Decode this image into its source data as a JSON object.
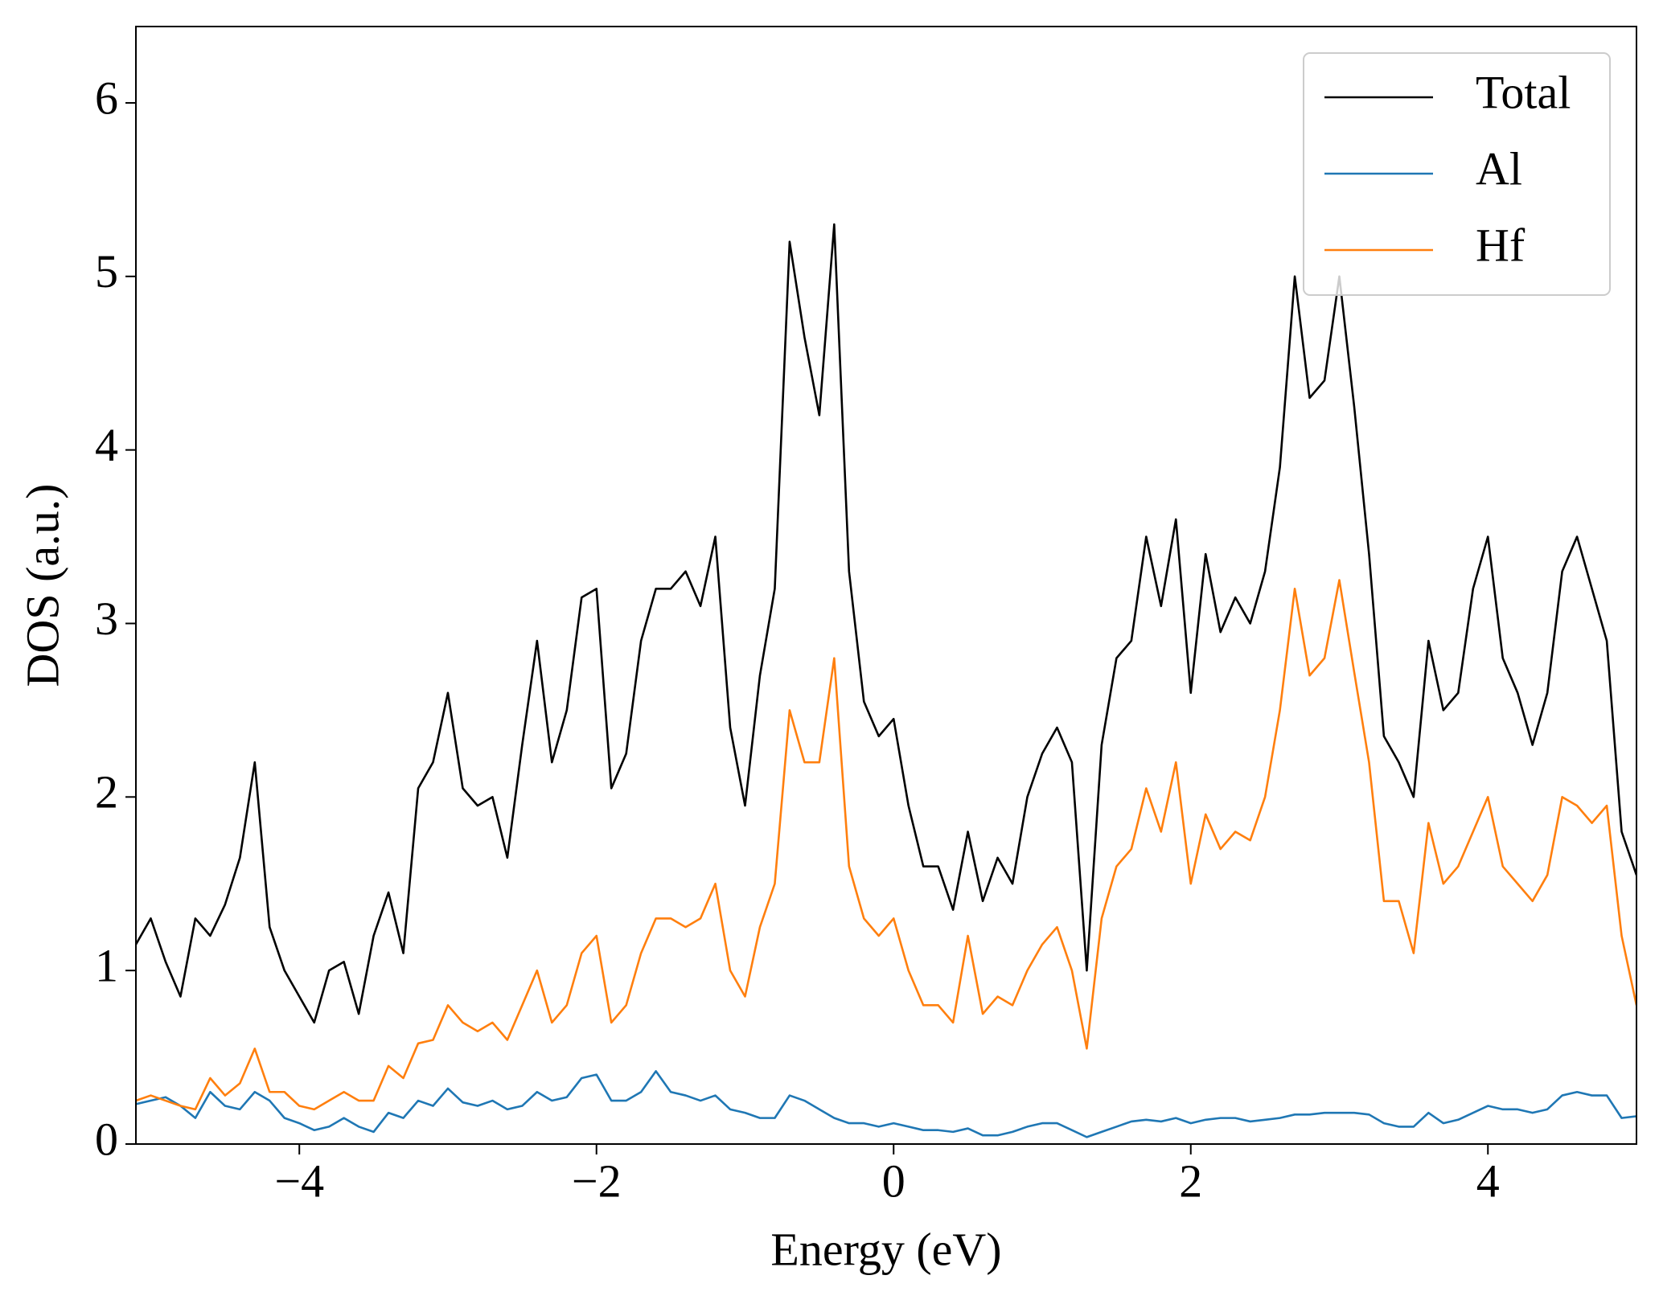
{
  "chart_data": {
    "type": "line",
    "xlabel": "Energy (eV)",
    "ylabel": "DOS (a.u.)",
    "x": [
      -5.1,
      -5.0,
      -4.9,
      -4.8,
      -4.7,
      -4.6,
      -4.5,
      -4.4,
      -4.3,
      -4.2,
      -4.1,
      -4.0,
      -3.9,
      -3.8,
      -3.7,
      -3.6,
      -3.5,
      -3.4,
      -3.3,
      -3.2,
      -3.1,
      -3.0,
      -2.9,
      -2.8,
      -2.7,
      -2.6,
      -2.5,
      -2.4,
      -2.3,
      -2.2,
      -2.1,
      -2.0,
      -1.9,
      -1.8,
      -1.7,
      -1.6,
      -1.5,
      -1.4,
      -1.3,
      -1.2,
      -1.1,
      -1.0,
      -0.9,
      -0.8,
      -0.7,
      -0.6,
      -0.5,
      -0.4,
      -0.3,
      -0.2,
      -0.1,
      0.0,
      0.1,
      0.2,
      0.3,
      0.4,
      0.5,
      0.6,
      0.7,
      0.8,
      0.9,
      1.0,
      1.1,
      1.2,
      1.3,
      1.4,
      1.5,
      1.6,
      1.7,
      1.8,
      1.9,
      2.0,
      2.1,
      2.2,
      2.3,
      2.4,
      2.5,
      2.6,
      2.7,
      2.8,
      2.9,
      3.0,
      3.1,
      3.2,
      3.3,
      3.4,
      3.5,
      3.6,
      3.7,
      3.8,
      3.9,
      4.0,
      4.1,
      4.2,
      4.3,
      4.4,
      4.5,
      4.6,
      4.7,
      4.8,
      4.9,
      5.0
    ],
    "series": [
      {
        "name": "Total",
        "color": "#000000",
        "values": [
          1.15,
          1.3,
          1.05,
          0.85,
          1.3,
          1.2,
          1.38,
          1.65,
          2.2,
          1.25,
          1.0,
          0.85,
          0.7,
          1.0,
          1.05,
          0.75,
          1.2,
          1.45,
          1.1,
          2.05,
          2.2,
          2.6,
          2.05,
          1.95,
          2.0,
          1.65,
          2.3,
          2.9,
          2.2,
          2.5,
          3.15,
          3.2,
          2.05,
          2.25,
          2.9,
          3.2,
          3.2,
          3.3,
          3.1,
          3.5,
          2.4,
          1.95,
          2.7,
          3.2,
          5.2,
          4.65,
          4.2,
          5.3,
          3.3,
          2.55,
          2.35,
          2.45,
          1.95,
          1.6,
          1.6,
          1.35,
          1.8,
          1.4,
          1.65,
          1.5,
          2.0,
          2.25,
          2.4,
          2.2,
          1.0,
          2.3,
          2.8,
          2.9,
          3.5,
          3.1,
          3.6,
          2.6,
          3.4,
          2.95,
          3.15,
          3.0,
          3.3,
          3.9,
          5.0,
          4.3,
          4.4,
          5.0,
          4.25,
          3.4,
          2.35,
          2.2,
          2.0,
          2.9,
          2.5,
          2.6,
          3.2,
          3.5,
          2.8,
          2.6,
          2.3,
          2.6,
          3.3,
          3.5,
          3.2,
          2.9,
          1.8,
          1.55
        ]
      },
      {
        "name": "Al",
        "color": "#1f77b4",
        "values": [
          0.23,
          0.25,
          0.27,
          0.22,
          0.15,
          0.3,
          0.22,
          0.2,
          0.3,
          0.25,
          0.15,
          0.12,
          0.08,
          0.1,
          0.15,
          0.1,
          0.07,
          0.18,
          0.15,
          0.25,
          0.22,
          0.32,
          0.24,
          0.22,
          0.25,
          0.2,
          0.22,
          0.3,
          0.25,
          0.27,
          0.38,
          0.4,
          0.25,
          0.25,
          0.3,
          0.42,
          0.3,
          0.28,
          0.25,
          0.28,
          0.2,
          0.18,
          0.15,
          0.15,
          0.28,
          0.25,
          0.2,
          0.15,
          0.12,
          0.12,
          0.1,
          0.12,
          0.1,
          0.08,
          0.08,
          0.07,
          0.09,
          0.05,
          0.05,
          0.07,
          0.1,
          0.12,
          0.12,
          0.08,
          0.04,
          0.07,
          0.1,
          0.13,
          0.14,
          0.13,
          0.15,
          0.12,
          0.14,
          0.15,
          0.15,
          0.13,
          0.14,
          0.15,
          0.17,
          0.17,
          0.18,
          0.18,
          0.18,
          0.17,
          0.12,
          0.1,
          0.1,
          0.18,
          0.12,
          0.14,
          0.18,
          0.22,
          0.2,
          0.2,
          0.18,
          0.2,
          0.28,
          0.3,
          0.28,
          0.28,
          0.15,
          0.16
        ]
      },
      {
        "name": "Hf",
        "color": "#ff7f0e",
        "values": [
          0.25,
          0.28,
          0.25,
          0.22,
          0.2,
          0.38,
          0.28,
          0.35,
          0.55,
          0.3,
          0.3,
          0.22,
          0.2,
          0.25,
          0.3,
          0.25,
          0.25,
          0.45,
          0.38,
          0.58,
          0.6,
          0.8,
          0.7,
          0.65,
          0.7,
          0.6,
          0.8,
          1.0,
          0.7,
          0.8,
          1.1,
          1.2,
          0.7,
          0.8,
          1.1,
          1.3,
          1.3,
          1.25,
          1.3,
          1.5,
          1.0,
          0.85,
          1.25,
          1.5,
          2.5,
          2.2,
          2.2,
          2.8,
          1.6,
          1.3,
          1.2,
          1.3,
          1.0,
          0.8,
          0.8,
          0.7,
          1.2,
          0.75,
          0.85,
          0.8,
          1.0,
          1.15,
          1.25,
          1.0,
          0.55,
          1.3,
          1.6,
          1.7,
          2.05,
          1.8,
          2.2,
          1.5,
          1.9,
          1.7,
          1.8,
          1.75,
          2.0,
          2.5,
          3.2,
          2.7,
          2.8,
          3.25,
          2.72,
          2.2,
          1.4,
          1.4,
          1.1,
          1.85,
          1.5,
          1.6,
          1.8,
          2.0,
          1.6,
          1.5,
          1.4,
          1.55,
          2.0,
          1.95,
          1.85,
          1.95,
          1.2,
          0.8
        ]
      }
    ],
    "xlim": [
      -5.1,
      5.0
    ],
    "ylim": [
      0,
      6.44
    ],
    "xticks": [
      {
        "value": -4,
        "label": "−4"
      },
      {
        "value": -2,
        "label": "−2"
      },
      0,
      2,
      4
    ],
    "yticks": [
      0,
      1,
      2,
      3,
      4,
      5,
      6
    ],
    "legend": "upper right"
  }
}
